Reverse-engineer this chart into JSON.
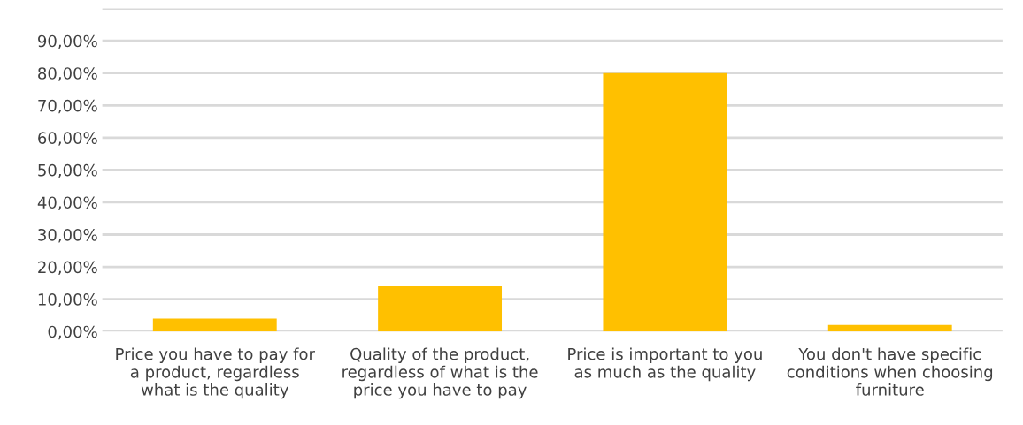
{
  "chart_data": {
    "type": "bar",
    "categories": [
      "Price you have to pay for a product, regardless what is the quality",
      "Quality of the product, regardless of what is the price you have to pay",
      "Price is important to you as much as the quality",
      "You don't have specific conditions when choosing furniture"
    ],
    "values": [
      4,
      14,
      80,
      2
    ],
    "color": "#ffc000",
    "ylim": [
      0,
      100
    ],
    "yticks": [
      {
        "value": 0,
        "label": "0,00%"
      },
      {
        "value": 10,
        "label": "10,00%"
      },
      {
        "value": 20,
        "label": "20,00%"
      },
      {
        "value": 30,
        "label": "30,00%"
      },
      {
        "value": 40,
        "label": "40,00%"
      },
      {
        "value": 50,
        "label": "50,00%"
      },
      {
        "value": 60,
        "label": "60,00%"
      },
      {
        "value": 70,
        "label": "70,00%"
      },
      {
        "value": 80,
        "label": "80,00%"
      },
      {
        "value": 90,
        "label": "90,00%"
      },
      {
        "value": 100,
        "label": null
      }
    ],
    "grid": "y"
  }
}
